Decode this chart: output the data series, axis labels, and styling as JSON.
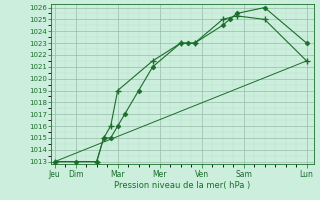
{
  "bg_color": "#cceedd",
  "grid_major_color": "#99bbaa",
  "grid_minor_color": "#bbddcc",
  "line_color": "#1a6e2a",
  "xlabel": "Pression niveau de la mer( hPa )",
  "ylim_min": 1013,
  "ylim_max": 1026,
  "yticks": [
    1013,
    1014,
    1015,
    1016,
    1017,
    1018,
    1019,
    1020,
    1021,
    1022,
    1023,
    1024,
    1025,
    1026
  ],
  "xtick_major_pos": [
    0,
    6,
    18,
    30,
    42,
    54,
    72
  ],
  "xtick_major_labels": [
    "Jeu",
    "Dim",
    "Mar",
    "Mer",
    "Ven",
    "Sam",
    "Lun"
  ],
  "line1_x": [
    0,
    6,
    12,
    14,
    16,
    18,
    20,
    24,
    28,
    36,
    38,
    40,
    48,
    50,
    52,
    60,
    72
  ],
  "line1_y": [
    1013.0,
    1013.0,
    1013.0,
    1015.0,
    1015.0,
    1016.0,
    1017.0,
    1019.0,
    1021.0,
    1023.0,
    1023.0,
    1023.0,
    1024.5,
    1025.0,
    1025.5,
    1026.0,
    1023.0
  ],
  "line2_x": [
    0,
    12,
    14,
    16,
    18,
    28,
    36,
    40,
    48,
    52,
    60,
    72
  ],
  "line2_y": [
    1013.0,
    1013.0,
    1015.0,
    1016.0,
    1019.0,
    1021.5,
    1023.0,
    1023.0,
    1025.0,
    1025.3,
    1025.0,
    1021.5
  ],
  "line3_x": [
    0,
    72
  ],
  "line3_y": [
    1013.0,
    1021.5
  ]
}
